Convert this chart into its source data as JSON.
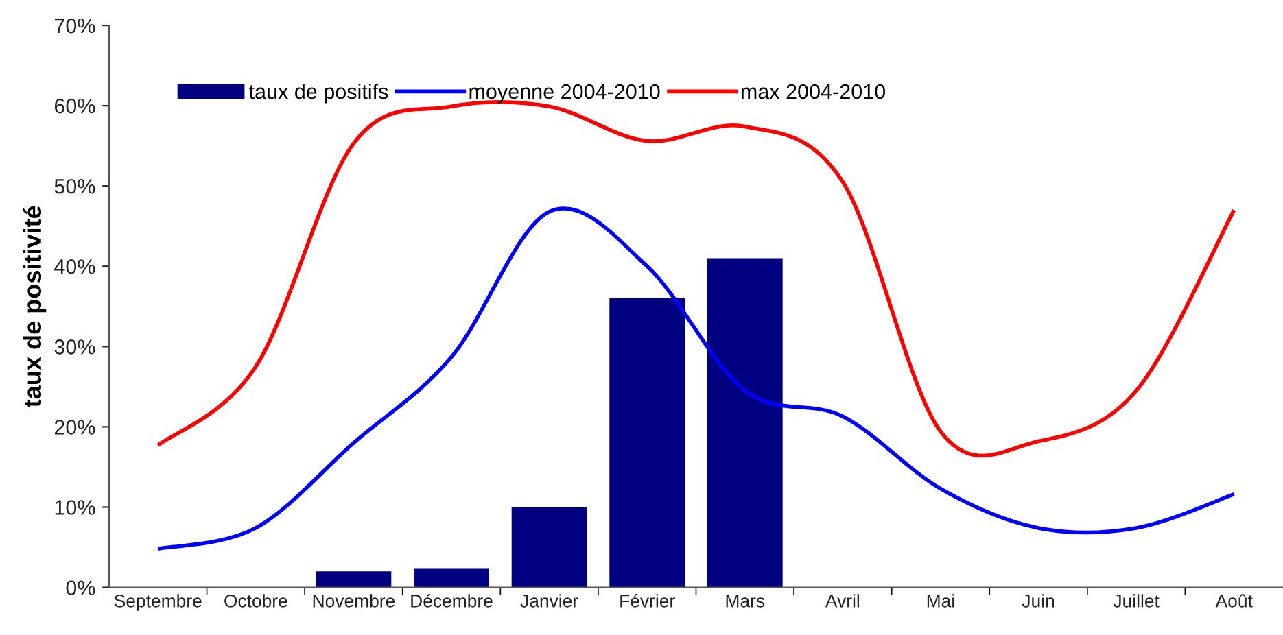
{
  "chart_data": {
    "type": "bar",
    "ylabel": "taux de positivité",
    "categories": [
      "Septembre",
      "Octobre",
      "Novembre",
      "Décembre",
      "Janvier",
      "Février",
      "Mars",
      "Avril",
      "Mai",
      "Juin",
      "Juillet",
      "Août"
    ],
    "series": [
      {
        "name": "taux de positifs",
        "color": "#000080",
        "values": [
          null,
          null,
          2.0,
          2.3,
          10,
          36,
          41,
          null,
          null,
          null,
          null,
          null
        ]
      },
      {
        "name": "moyenne 2004-2010",
        "type": "line",
        "color": "#0000ff",
        "values": [
          4.8,
          7.4,
          18.0,
          28.7,
          46.8,
          40.0,
          24.5,
          21.3,
          12.3,
          7.4,
          7.4,
          11.6
        ]
      },
      {
        "name": "max 2004-2010",
        "type": "line",
        "color": "#ff0000",
        "values": [
          17.7,
          27.5,
          55.3,
          59.9,
          59.9,
          55.6,
          57.4,
          50.5,
          19.4,
          18.2,
          24.5,
          47.0
        ]
      }
    ],
    "ylim": [
      0,
      70
    ],
    "yticks": [
      {
        "value": 0,
        "label": "0%"
      },
      {
        "value": 10,
        "label": "10%"
      },
      {
        "value": 20,
        "label": "20%"
      },
      {
        "value": 30,
        "label": "30%"
      },
      {
        "value": 40,
        "label": "40%"
      },
      {
        "value": 50,
        "label": "50%"
      },
      {
        "value": 60,
        "label": "60%"
      },
      {
        "value": 70,
        "label": "70%"
      }
    ],
    "grid": false,
    "legend": "top"
  }
}
